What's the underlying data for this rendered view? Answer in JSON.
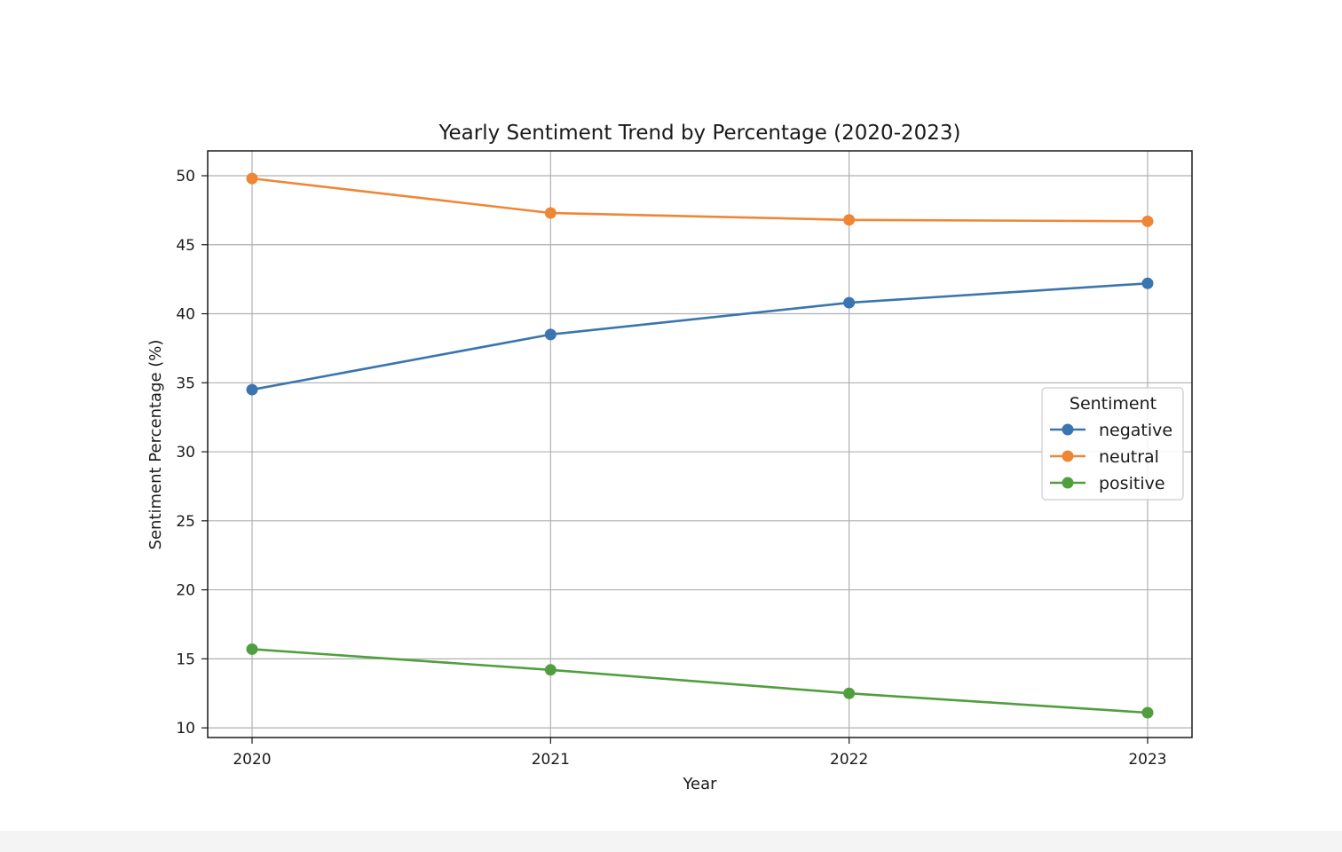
{
  "chart_data": {
    "type": "line",
    "title": "Yearly Sentiment Trend by Percentage (2020-2023)",
    "xlabel": "Year",
    "ylabel": "Sentiment Percentage (%)",
    "categories": [
      "2020",
      "2021",
      "2022",
      "2023"
    ],
    "ylim": [
      9.3,
      51.8
    ],
    "yticks": [
      10,
      15,
      20,
      25,
      30,
      35,
      40,
      45,
      50
    ],
    "grid": true,
    "legend": {
      "title": "Sentiment",
      "placement": "center-right"
    },
    "series": [
      {
        "name": "negative",
        "color": "#3b75af",
        "values": [
          34.5,
          38.5,
          40.8,
          42.2
        ]
      },
      {
        "name": "neutral",
        "color": "#ef8636",
        "values": [
          49.8,
          47.3,
          46.8,
          46.7
        ]
      },
      {
        "name": "positive",
        "color": "#519e3e",
        "values": [
          15.7,
          14.2,
          12.5,
          11.1
        ]
      }
    ]
  }
}
